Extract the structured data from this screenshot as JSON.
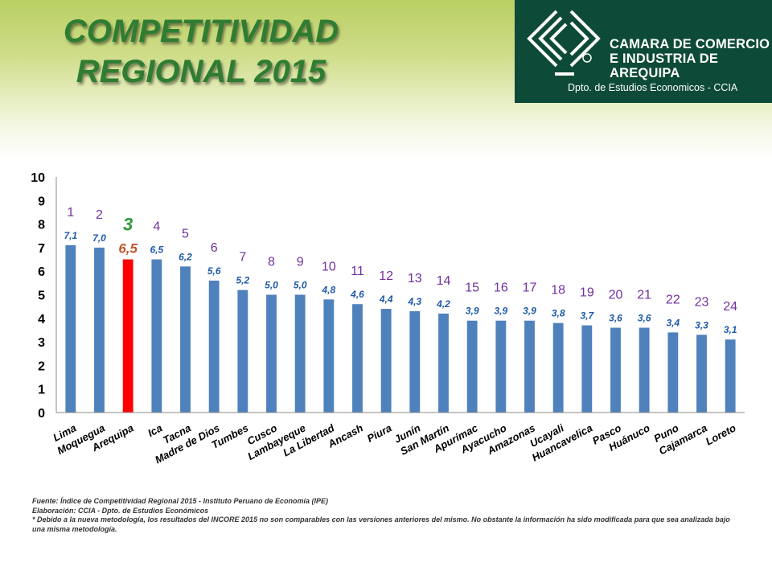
{
  "title": {
    "line1": "COMPETITIVIDAD",
    "line2": "REGIONAL 2015"
  },
  "logo": {
    "line1": "CAMARA DE COMERCIO",
    "line2": "E INDUSTRIA DE",
    "line3": "AREQUIPA",
    "dept": "Dpto. de Estudios Economicos - CCIA"
  },
  "colors": {
    "bar": "#4f81bd",
    "highlight_bar": "#ff0000",
    "value_label": "#1f5aa6",
    "highlight_value": "#c0562b",
    "rank": "#7030a0",
    "highlight_rank": "#2e9a3a",
    "title": "#2e7d32",
    "logo_bg": "#0d4a37"
  },
  "chart_data": {
    "type": "bar",
    "categories": [
      "Lima",
      "Moquegua",
      "Arequipa",
      "Ica",
      "Tacna",
      "Madre de Dios",
      "Tumbes",
      "Cusco",
      "Lambayeque",
      "La Libertad",
      "Ancash",
      "Piura",
      "Junín",
      "San Martín",
      "Apurímac",
      "Ayacucho",
      "Amazonas",
      "Ucayali",
      "Huancavelica",
      "Pasco",
      "Huánuco",
      "Puno",
      "Cajamarca",
      "Loreto"
    ],
    "values": [
      7.1,
      7.0,
      6.5,
      6.5,
      6.2,
      5.6,
      5.2,
      5.0,
      5.0,
      4.8,
      4.6,
      4.4,
      4.3,
      4.2,
      3.9,
      3.9,
      3.9,
      3.8,
      3.7,
      3.6,
      3.6,
      3.4,
      3.3,
      3.1
    ],
    "value_labels": [
      "7,1",
      "7,0",
      "6,5",
      "6,5",
      "6,2",
      "5,6",
      "5,2",
      "5,0",
      "5,0",
      "4,8",
      "4,6",
      "4,4",
      "4,3",
      "4,2",
      "3,9",
      "3,9",
      "3,9",
      "3,8",
      "3,7",
      "3,6",
      "3,6",
      "3,4",
      "3,3",
      "3,1"
    ],
    "ranks": [
      "1",
      "2",
      "3",
      "4",
      "5",
      "6",
      "7",
      "8",
      "9",
      "10",
      "11",
      "12",
      "13",
      "14",
      "15",
      "16",
      "17",
      "18",
      "19",
      "20",
      "21",
      "22",
      "23",
      "24"
    ],
    "highlight_index": 2,
    "ylim": [
      0,
      10
    ],
    "yticks": [
      "0",
      "1",
      "2",
      "3",
      "4",
      "5",
      "6",
      "7",
      "8",
      "9",
      "10"
    ],
    "grid": false,
    "legend": "none"
  },
  "footer": {
    "source": "Fuente: Índice de Competitividad Regional 2015 - Instituto Peruano de Economía (IPE)",
    "elaboration": "Elaboración: CCIA - Dpto. de Estudios Económicos",
    "note": "* Debido a la nueva metodología, los resultados del INCORE 2015 no son comparables con las versiones anteriores del mismo. No obstante la información ha sido modificada para que sea analizada bajo una misma metodología."
  }
}
